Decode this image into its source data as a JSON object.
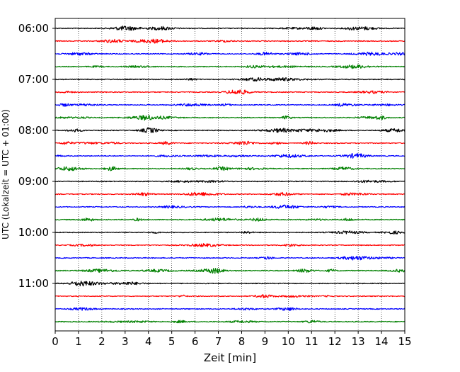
{
  "chart_data": {
    "type": "line",
    "title": "",
    "xlabel": "Zeit  [min]",
    "ylabel": "UTC (Lokalzeit = UTC + 01:00)",
    "xlim": [
      0,
      15
    ],
    "xticks": [
      "0",
      "1",
      "2",
      "3",
      "4",
      "5",
      "6",
      "7",
      "8",
      "9",
      "10",
      "11",
      "12",
      "13",
      "14",
      "15"
    ],
    "yticks": [
      "06:00",
      "07:00",
      "08:00",
      "09:00",
      "10:00",
      "11:00"
    ],
    "grid": "x-dotted",
    "trace_interval_min": 15,
    "trace_start": "06:00",
    "trace_colors": [
      "#000000",
      "#ff0000",
      "#0000ff",
      "#008000"
    ],
    "traces": [
      "06:00",
      "06:15",
      "06:30",
      "06:45",
      "07:00",
      "07:15",
      "07:30",
      "07:45",
      "08:00",
      "08:15",
      "08:30",
      "08:45",
      "09:00",
      "09:15",
      "09:30",
      "09:45",
      "10:00",
      "10:15",
      "10:30",
      "10:45",
      "11:00",
      "11:15",
      "11:30",
      "11:45"
    ]
  }
}
